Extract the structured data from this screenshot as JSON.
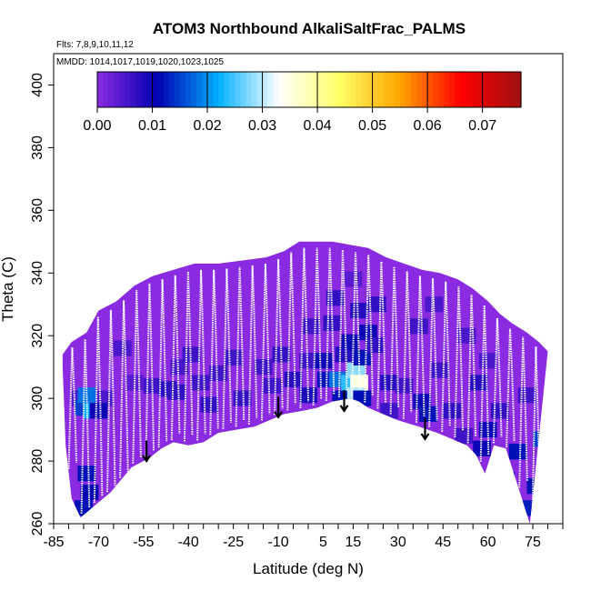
{
  "chart_data": {
    "type": "heatmap",
    "title": "ATOM3 Northbound AlkaliSaltFrac_PALMS",
    "flights_note": "Flts: 7,8,9,10,11,12",
    "dates_note": "MMDD: 1014,1017,1019,1020,1023,1025",
    "xlabel": "Latitude (deg N)",
    "ylabel": "Theta (C)",
    "xlim": [
      -85,
      85
    ],
    "ylim": [
      260,
      410
    ],
    "x_tick_labels": [
      "-85",
      "-70",
      "-55",
      "-40",
      "-25",
      "-10",
      "5",
      "15",
      "30",
      "45",
      "60",
      "75"
    ],
    "x_tick_values": [
      -85,
      -70,
      -55,
      -40,
      -25,
      -10,
      5,
      15,
      30,
      45,
      60,
      75
    ],
    "y_tick_labels": [
      "260",
      "280",
      "300",
      "320",
      "340",
      "360",
      "380",
      "400"
    ],
    "y_tick_values": [
      260,
      280,
      300,
      320,
      340,
      360,
      380,
      400
    ],
    "colorbar": {
      "range": [
        0,
        0.077
      ],
      "tick_labels": [
        "0.00",
        "0.01",
        "0.02",
        "0.03",
        "0.04",
        "0.05",
        "0.06",
        "0.07"
      ],
      "tick_values": [
        0,
        0.01,
        0.02,
        0.03,
        0.04,
        0.05,
        0.06,
        0.07
      ],
      "colors": [
        "#8a2be2",
        "#0000b0",
        "#00b0ff",
        "#ffffff",
        "#ffff66",
        "#ffa500",
        "#ff0000",
        "#a01010"
      ]
    },
    "bottom_boundary": [
      [
        -82,
        310
      ],
      [
        -81,
        285
      ],
      [
        -79,
        268
      ],
      [
        -76,
        262
      ],
      [
        -71,
        266
      ],
      [
        -66,
        270
      ],
      [
        -59,
        278
      ],
      [
        -53,
        281
      ],
      [
        -49,
        284
      ],
      [
        -45,
        286
      ],
      [
        -40,
        285
      ],
      [
        -35,
        286
      ],
      [
        -30,
        289
      ],
      [
        -24,
        290
      ],
      [
        -18,
        291
      ],
      [
        -13,
        293
      ],
      [
        -8,
        295
      ],
      [
        -2,
        296
      ],
      [
        3,
        297
      ],
      [
        8,
        299
      ],
      [
        14,
        300
      ],
      [
        17,
        299
      ],
      [
        20,
        297
      ],
      [
        25,
        295
      ],
      [
        30,
        293
      ],
      [
        37,
        291
      ],
      [
        43,
        289
      ],
      [
        48,
        287
      ],
      [
        53,
        285
      ],
      [
        56,
        282
      ],
      [
        59,
        276
      ],
      [
        62,
        285
      ],
      [
        66,
        284
      ],
      [
        70,
        272
      ],
      [
        74,
        260
      ]
    ],
    "top_boundary": [
      [
        -82,
        314
      ],
      [
        -79,
        318
      ],
      [
        -74,
        321
      ],
      [
        -70,
        328
      ],
      [
        -64,
        331
      ],
      [
        -58,
        336
      ],
      [
        -52,
        339
      ],
      [
        -45,
        341
      ],
      [
        -38,
        343
      ],
      [
        -30,
        343
      ],
      [
        -22,
        344
      ],
      [
        -14,
        345
      ],
      [
        -8,
        347
      ],
      [
        -3,
        350
      ],
      [
        3,
        350
      ],
      [
        8,
        350
      ],
      [
        14,
        349
      ],
      [
        20,
        348
      ],
      [
        26,
        345
      ],
      [
        32,
        343
      ],
      [
        38,
        341
      ],
      [
        44,
        340
      ],
      [
        50,
        338
      ],
      [
        55,
        335
      ],
      [
        60,
        331
      ],
      [
        64,
        327
      ],
      [
        68,
        324
      ],
      [
        73,
        321
      ],
      [
        77,
        318
      ],
      [
        80,
        315
      ]
    ],
    "cells": [
      [
        -76,
        300,
        0.005
      ],
      [
        -75,
        297,
        0.015
      ],
      [
        -72,
        296,
        0.022
      ],
      [
        -74,
        276,
        0.012
      ],
      [
        -73,
        270,
        0.011
      ],
      [
        -75,
        265,
        0.012
      ],
      [
        -68,
        300,
        0.005
      ],
      [
        -62,
        316,
        0.005
      ],
      [
        -58,
        305,
        0.004
      ],
      [
        -52,
        304,
        0.006
      ],
      [
        -47,
        303,
        0.008
      ],
      [
        -43,
        310,
        0.005
      ],
      [
        -44,
        302,
        0.007
      ],
      [
        -36,
        305,
        0.006
      ],
      [
        -30,
        308,
        0.006
      ],
      [
        -22,
        300,
        0.007
      ],
      [
        -15,
        310,
        0.006
      ],
      [
        -12,
        304,
        0.006
      ],
      [
        -5,
        306,
        0.008
      ],
      [
        0,
        301,
        0.009
      ],
      [
        0,
        312,
        0.006
      ],
      [
        5,
        312,
        0.01
      ],
      [
        6,
        306,
        0.012
      ],
      [
        10,
        306,
        0.018
      ],
      [
        11,
        300,
        0.012
      ],
      [
        12,
        314,
        0.008
      ],
      [
        14,
        318,
        0.01
      ],
      [
        14,
        305,
        0.024
      ],
      [
        16,
        309,
        0.028
      ],
      [
        17,
        305,
        0.035
      ],
      [
        16,
        301,
        0.03
      ],
      [
        18,
        313,
        0.012
      ],
      [
        18,
        300,
        0.012
      ],
      [
        20,
        321,
        0.01
      ],
      [
        22,
        317,
        0.007
      ],
      [
        27,
        305,
        0.008
      ],
      [
        27,
        296,
        0.006
      ],
      [
        32,
        304,
        0.006
      ],
      [
        38,
        299,
        0.01
      ],
      [
        40,
        295,
        0.012
      ],
      [
        44,
        309,
        0.006
      ],
      [
        48,
        296,
        0.007
      ],
      [
        52,
        288,
        0.006
      ],
      [
        58,
        284,
        0.01
      ],
      [
        60,
        290,
        0.01
      ],
      [
        63,
        271,
        0.01
      ],
      [
        66,
        274,
        0.013
      ],
      [
        68,
        266,
        0.01
      ],
      [
        70,
        283,
        0.012
      ],
      [
        74,
        265,
        0.013
      ],
      [
        76,
        272,
        0.012
      ],
      [
        78,
        287,
        0.015
      ],
      [
        79,
        275,
        0.011
      ],
      [
        73,
        301,
        0.006
      ],
      [
        60,
        312,
        0.005
      ],
      [
        57,
        305,
        0.008
      ],
      [
        -39,
        314,
        0.006
      ],
      [
        -33,
        298,
        0.007
      ],
      [
        -25,
        313,
        0.006
      ],
      [
        -9,
        314,
        0.007
      ],
      [
        1,
        323,
        0.006
      ],
      [
        8,
        324,
        0.007
      ],
      [
        9,
        332,
        0.007
      ],
      [
        15,
        338,
        0.004
      ],
      [
        17,
        328,
        0.008
      ],
      [
        23,
        330,
        0.007
      ],
      [
        37,
        323,
        0.006
      ],
      [
        42,
        330,
        0.005
      ],
      [
        53,
        320,
        0.005
      ],
      [
        -74,
        301,
        0.018
      ],
      [
        -70,
        296,
        0.01
      ],
      [
        64,
        296,
        0.007
      ]
    ],
    "annotations": [
      {
        "label": "arrow",
        "x": -54,
        "y": 286
      },
      {
        "label": "arrow",
        "x": -10,
        "y": 300
      },
      {
        "label": "arrow",
        "x": 12,
        "y": 302
      },
      {
        "label": "arrow",
        "x": 39,
        "y": 293
      }
    ]
  }
}
